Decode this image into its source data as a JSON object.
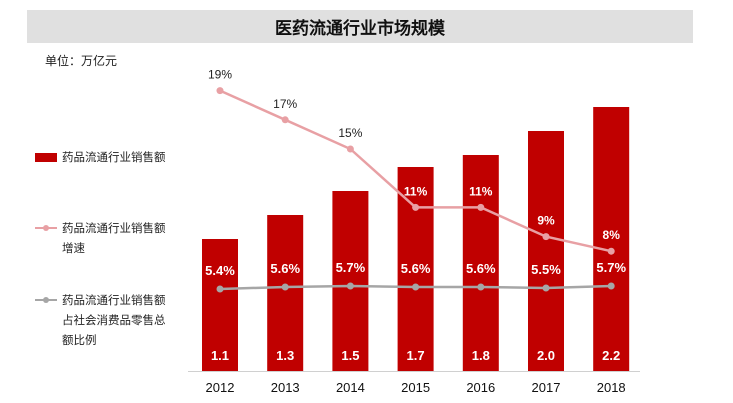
{
  "chart_data": {
    "type": "bar+line",
    "title": "医药流通行业市场规模",
    "unit_label": "单位：万亿元",
    "categories": [
      "2012",
      "2013",
      "2014",
      "2015",
      "2016",
      "2017",
      "2018"
    ],
    "series": [
      {
        "name": "药品流通行业销售额",
        "type": "bar",
        "color": "#c00000",
        "values": [
          1.1,
          1.3,
          1.5,
          1.7,
          1.8,
          2.0,
          2.2
        ],
        "labels": [
          "1.1",
          "1.3",
          "1.5",
          "1.7",
          "1.8",
          "2.0",
          "2.2"
        ]
      },
      {
        "name": "药品流通行业销售额增速",
        "type": "line",
        "color": "#e8a0a4",
        "values": [
          19,
          17,
          15,
          11,
          11,
          9,
          8
        ],
        "labels": [
          "19%",
          "17%",
          "15%",
          "11%",
          "11%",
          "9%",
          "8%"
        ]
      },
      {
        "name": "药品流通行业销售额占社会消费品零售总额比例",
        "type": "line",
        "color": "#a6a6a6",
        "values": [
          5.4,
          5.6,
          5.7,
          5.6,
          5.6,
          5.5,
          5.7
        ],
        "labels": [
          "5.4%",
          "5.6%",
          "5.7%",
          "5.6%",
          "5.6%",
          "5.5%",
          "5.7%"
        ]
      }
    ],
    "legend_position": "left",
    "grid": false
  },
  "legend": {
    "l1": "药品流通行业销售额",
    "l2a": "药品流通行业销售额",
    "l2b": "增速",
    "l3a": "药品流通行业销售额",
    "l3b": "占社会消费品零售总",
    "l3c": "额比例"
  }
}
